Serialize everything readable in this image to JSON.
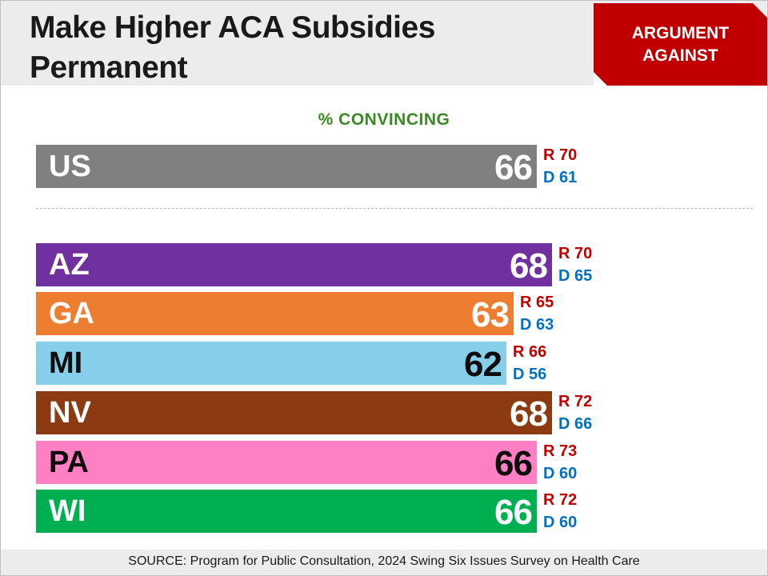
{
  "header": {
    "title_line1": "Make Higher ACA Subsidies",
    "title_line2": "Permanent",
    "badge_line1": "ARGUMENT",
    "badge_line2": "AGAINST"
  },
  "footer": {
    "source": "SOURCE: Program for Public Consultation, 2024 Swing Six Issues Survey on Health Care"
  },
  "chart_data": {
    "type": "bar",
    "orientation": "horizontal",
    "title": "Make Higher ACA Subsidies Permanent",
    "value_label": "% CONVINCING",
    "legend": "none",
    "grid": false,
    "xlim": [
      0,
      100
    ],
    "categories": [
      "US",
      "AZ",
      "GA",
      "MI",
      "NV",
      "PA",
      "WI"
    ],
    "values": [
      66,
      68,
      63,
      62,
      68,
      66,
      66
    ],
    "series": [
      {
        "name": "R",
        "values": [
          70,
          70,
          65,
          66,
          72,
          73,
          72
        ]
      },
      {
        "name": "D",
        "values": [
          61,
          65,
          63,
          56,
          66,
          60,
          60
        ]
      }
    ],
    "bar_colors": [
      "#808080",
      "#7030a0",
      "#ed7d31",
      "#87ceeb",
      "#8b3a12",
      "#ff7fc4",
      "#00b050"
    ],
    "dark_text": [
      false,
      false,
      false,
      true,
      false,
      true,
      false
    ],
    "party_colors": {
      "R": "#c00000",
      "D": "#0070c0"
    }
  }
}
